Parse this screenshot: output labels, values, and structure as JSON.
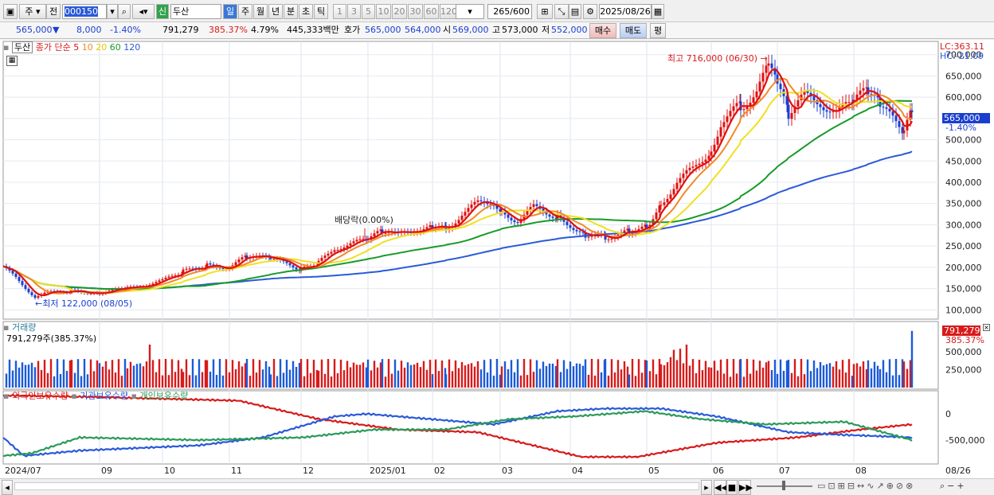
{
  "toolbar": {
    "market": "주",
    "prev": "전",
    "code": "000150",
    "stock_name": "두산",
    "shin_badge": "신",
    "period_tabs": [
      "일",
      "주",
      "월",
      "년",
      "분",
      "초",
      "틱"
    ],
    "selected_period": "일",
    "minute_opts": [
      "1",
      "3",
      "5",
      "10",
      "20",
      "30",
      "60",
      "120"
    ],
    "count": "265",
    "count_total": "/600",
    "date": "2025/08/26"
  },
  "quote": {
    "price": "565,000",
    "arrow": "▼",
    "change": "8,000",
    "change_pct": "-1.40%",
    "volume": "791,279",
    "volume_pct": "385.37%",
    "turnover_pct": "4.79%",
    "amount": "445,333백만",
    "hoga_label": "호가",
    "ask": "565,000",
    "bid": "564,000",
    "open_label": "시",
    "open": "569,000",
    "high_label": "고",
    "high": "573,000",
    "low_label": "저",
    "low": "552,000",
    "buy_btn": "매수",
    "sell_btn": "매도",
    "eval_btn": "평"
  },
  "price_panel": {
    "name": "두산",
    "series_label": "종가 단순",
    "ma_labels": [
      "5",
      "10",
      "20",
      "60",
      "120"
    ],
    "ma_colors": [
      "#e01010",
      "#f08a2a",
      "#f0e020",
      "#199a2a",
      "#2a5ad8"
    ],
    "lc": "LC:363.11",
    "hc": "HC:-21.09",
    "current_tag": "565,000",
    "current_pct": "-1.40%",
    "y_ticks": [
      "700,000",
      "650,000",
      "600,000",
      "550,000",
      "500,000",
      "450,000",
      "400,000",
      "350,000",
      "300,000",
      "250,000",
      "200,000",
      "150,000",
      "100,000"
    ],
    "annot_high": "최고 716,000 (06/30)",
    "annot_low": "최저 122,000 (08/05)",
    "annot_div": "배당락(0.00%)"
  },
  "volume_panel": {
    "title": "거래량",
    "value": "791,279주(385.37%)",
    "tag": "791,279",
    "tag_pct": "385.37%",
    "y_ticks": [
      "500,000",
      "250,000"
    ]
  },
  "holding_panel": {
    "labels": [
      "외국인보유수량",
      "기관보유수량",
      "개인보유수량"
    ],
    "colors": [
      "#d81a1a",
      "#2a5ad8",
      "#2a9a5a"
    ],
    "y_ticks": [
      "0",
      "-500,000"
    ]
  },
  "x_axis": [
    "2024/07",
    "09",
    "10",
    "11",
    "12",
    "2025/01",
    "02",
    "03",
    "04",
    "05",
    "06",
    "07",
    "08"
  ],
  "x_axis_end": "08/26",
  "chart_data": {
    "type": "line",
    "title": "두산 (000150) 일봉",
    "x": [
      "2024/07",
      "2024/08",
      "2024/09",
      "2024/10",
      "2024/11",
      "2024/12",
      "2025/01",
      "2025/02",
      "2025/03",
      "2025/04",
      "2025/05",
      "2025/06",
      "2025/07",
      "2025/08/26"
    ],
    "series": [
      {
        "name": "종가",
        "values": [
          200000,
          140000,
          150000,
          165000,
          215000,
          200000,
          275000,
          300000,
          345000,
          275000,
          320000,
          600000,
          605000,
          565000
        ]
      },
      {
        "name": "120",
        "values": [
          160000,
          168000,
          170000,
          175000,
          185000,
          195000,
          220000,
          245000,
          270000,
          280000,
          295000,
          360000,
          420000,
          455000
        ]
      }
    ],
    "ylim": [
      100000,
      720000
    ],
    "high": {
      "value": 716000,
      "date": "06/30"
    },
    "low": {
      "value": 122000,
      "date": "08/05"
    }
  }
}
